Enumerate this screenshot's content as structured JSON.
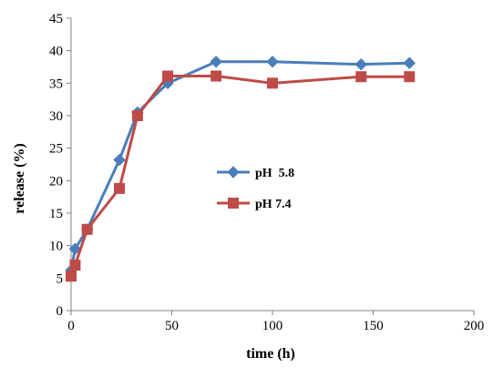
{
  "chart_data": {
    "type": "line",
    "title": "",
    "xlabel": "time (h)",
    "ylabel": "release (%)",
    "xlim": [
      0,
      200
    ],
    "ylim": [
      0,
      45
    ],
    "xticks": [
      0,
      50,
      100,
      150,
      200
    ],
    "yticks": [
      0,
      5,
      10,
      15,
      20,
      25,
      30,
      35,
      40,
      45
    ],
    "xtick_labels": [
      "0",
      "50",
      "100",
      "150",
      "200"
    ],
    "ytick_labels": [
      "0",
      "5",
      "10",
      "15",
      "20",
      "25",
      "30",
      "35",
      "40",
      "45"
    ],
    "grid": false,
    "legend_position": "center",
    "series": [
      {
        "name": "pH  5.8",
        "color": "#4a7ebb",
        "marker": "diamond",
        "x": [
          0,
          2,
          8,
          24,
          33,
          48,
          72,
          100,
          144,
          168
        ],
        "y": [
          6.2,
          9.5,
          12.5,
          23.2,
          30.5,
          35.0,
          38.3,
          38.3,
          37.9,
          38.1
        ]
      },
      {
        "name": "pH 7.4",
        "color": "#be4b48",
        "marker": "square",
        "x": [
          0,
          2,
          8,
          24,
          33,
          48,
          72,
          100,
          144,
          168
        ],
        "y": [
          5.3,
          7.0,
          12.5,
          18.8,
          30.0,
          36.1,
          36.1,
          35.0,
          36.0,
          36.0
        ]
      }
    ]
  }
}
